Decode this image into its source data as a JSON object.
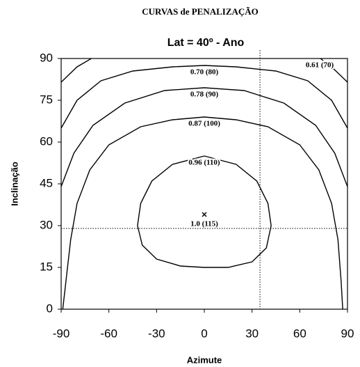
{
  "chart_data": {
    "type": "contour",
    "title": "CURVAS de PENALIZAÇÃO",
    "subtitle": "Lat = 40º - Ano",
    "x_label": "Azimute",
    "y_label": "Inclinação",
    "xlim": [
      -90,
      90
    ],
    "xticks": [
      -90,
      -60,
      -30,
      0,
      30,
      60,
      90
    ],
    "ylim": [
      0,
      90
    ],
    "yticks": [
      0,
      15,
      30,
      45,
      60,
      75,
      90
    ],
    "color": "#000000",
    "series": [
      {
        "name": "0.61 (70)",
        "x": [
          -90,
          -80,
          -71,
          null,
          73,
          80,
          90
        ],
        "y": [
          81.5,
          87,
          90,
          null,
          90,
          87,
          81.5
        ]
      },
      {
        "name": "0.70 (80)",
        "x": [
          -90,
          -80,
          -65,
          -45,
          -20,
          0,
          20,
          45,
          65,
          80,
          90
        ],
        "y": [
          65,
          75,
          82,
          85.5,
          87,
          87.5,
          87,
          85.5,
          82,
          75,
          65
        ]
      },
      {
        "name": "0.78 (90)",
        "x": [
          -90,
          -82,
          -70,
          -50,
          -25,
          0,
          25,
          50,
          70,
          82,
          90
        ],
        "y": [
          44,
          56,
          66,
          74,
          78.5,
          79.5,
          78.5,
          74,
          66,
          56,
          44
        ]
      },
      {
        "name": "0.87 (100)",
        "x": [
          -89,
          -87,
          -84,
          -80,
          -72,
          -60,
          -40,
          -20,
          0,
          20,
          40,
          60,
          72,
          80,
          84,
          86,
          87
        ],
        "y": [
          0,
          10,
          25,
          38,
          50,
          59,
          65.5,
          68,
          69,
          68,
          65.5,
          59,
          50,
          38,
          25,
          10,
          0
        ]
      },
      {
        "name": "0.96 (110)",
        "x": [
          0,
          20,
          33,
          40,
          42,
          39,
          30,
          15,
          0,
          -15,
          -30,
          -39,
          -42,
          -40,
          -33,
          -20,
          0
        ],
        "y": [
          55,
          52,
          46,
          38,
          30,
          22,
          17,
          15,
          15,
          15.5,
          18,
          23,
          30,
          38,
          46,
          52,
          55
        ]
      }
    ],
    "optimum": {
      "x": 0,
      "y": 34,
      "label": "1.0 (115)"
    },
    "reference_lines": {
      "x": 35,
      "y": 29
    }
  }
}
